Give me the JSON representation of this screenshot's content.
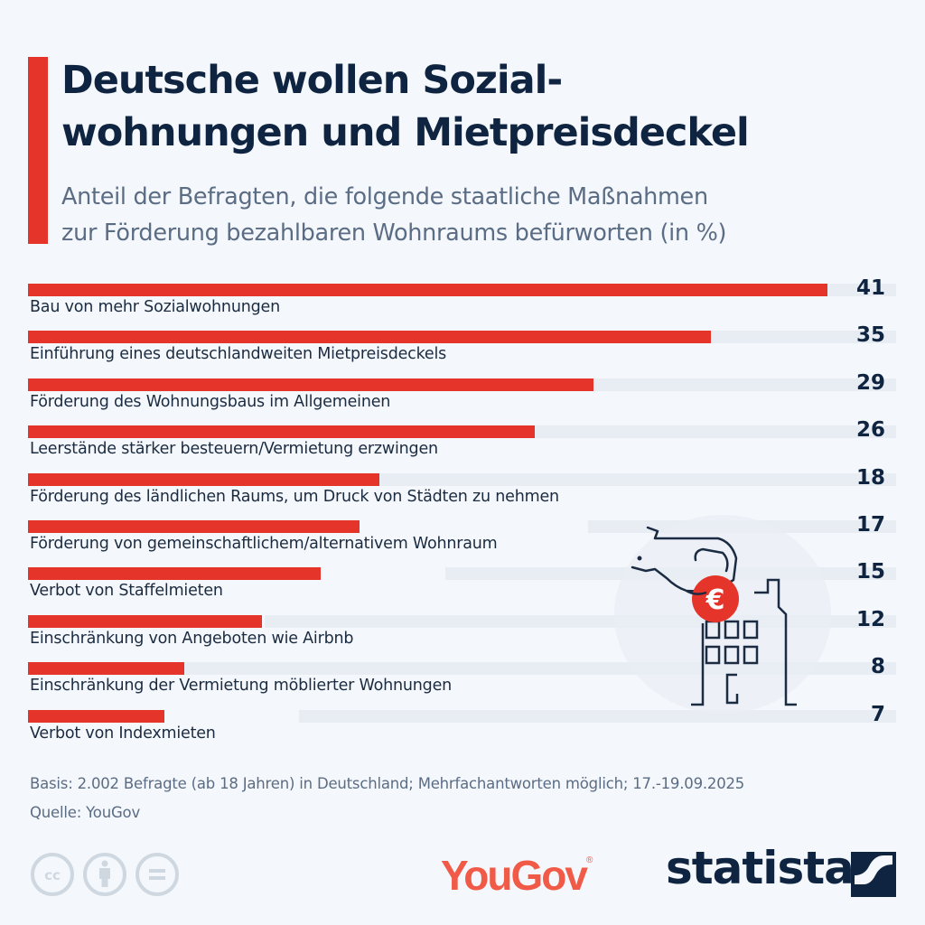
{
  "header": {
    "title_line1": "Deutsche wollen Sozial-",
    "title_line2": "wohnungen und Mietpreisdeckel",
    "subtitle_line1": "Anteil der Befragten, die folgende staatliche Maßnahmen",
    "subtitle_line2": "zur Förderung bezahlbaren Wohnraums befürworten (in %)"
  },
  "colors": {
    "accent": "#e5352b",
    "title": "#0f2440",
    "subtitle": "#5b6d85",
    "background": "#f4f7fb",
    "track": "#e8edf4",
    "yougov": "#f05a47"
  },
  "chart_data": {
    "type": "bar",
    "orientation": "horizontal",
    "title": "Deutsche wollen Sozialwohnungen und Mietpreisdeckel",
    "subtitle": "Anteil der Befragten, die folgende staatliche Maßnahmen zur Förderung bezahlbaren Wohnraums befürworten (in %)",
    "xlabel": "",
    "ylabel": "",
    "unit": "%",
    "xlim": [
      0,
      44.5
    ],
    "grid": false,
    "legend": "none",
    "categories": [
      "Bau von mehr Sozialwohnungen",
      "Einführung eines deutschlandweiten Mietpreisdeckels",
      "Förderung des Wohnungsbaus im Allgemeinen",
      "Leerstände stärker besteuern/Vermietung erzwingen",
      "Förderung des ländlichen Raums, um Druck von Städten zu nehmen",
      "Förderung von gemeinschaftlichem/alternativem Wohnraum",
      "Verbot von Staffelmieten",
      "Einschränkung von Angeboten wie Airbnb",
      "Einschränkung der Vermietung möblierter Wohnungen",
      "Verbot von Indexmieten"
    ],
    "values": [
      41,
      35,
      29,
      26,
      18,
      17,
      15,
      12,
      8,
      7
    ]
  },
  "illustration": {
    "icon": "hand-euro-coin-building-icon",
    "coin_symbol": "€"
  },
  "footer": {
    "basis": "Basis: 2.002 Befragte (ab 18 Jahren) in Deutschland; Mehrfachantworten möglich; 17.-19.09.2025",
    "source": "Quelle: YouGov",
    "license_icons": [
      "cc-icon",
      "attribution-icon",
      "no-derivatives-icon"
    ],
    "partner_logo": "YouGov",
    "partner_logo_mark": "®",
    "brand_logo": "statista"
  }
}
